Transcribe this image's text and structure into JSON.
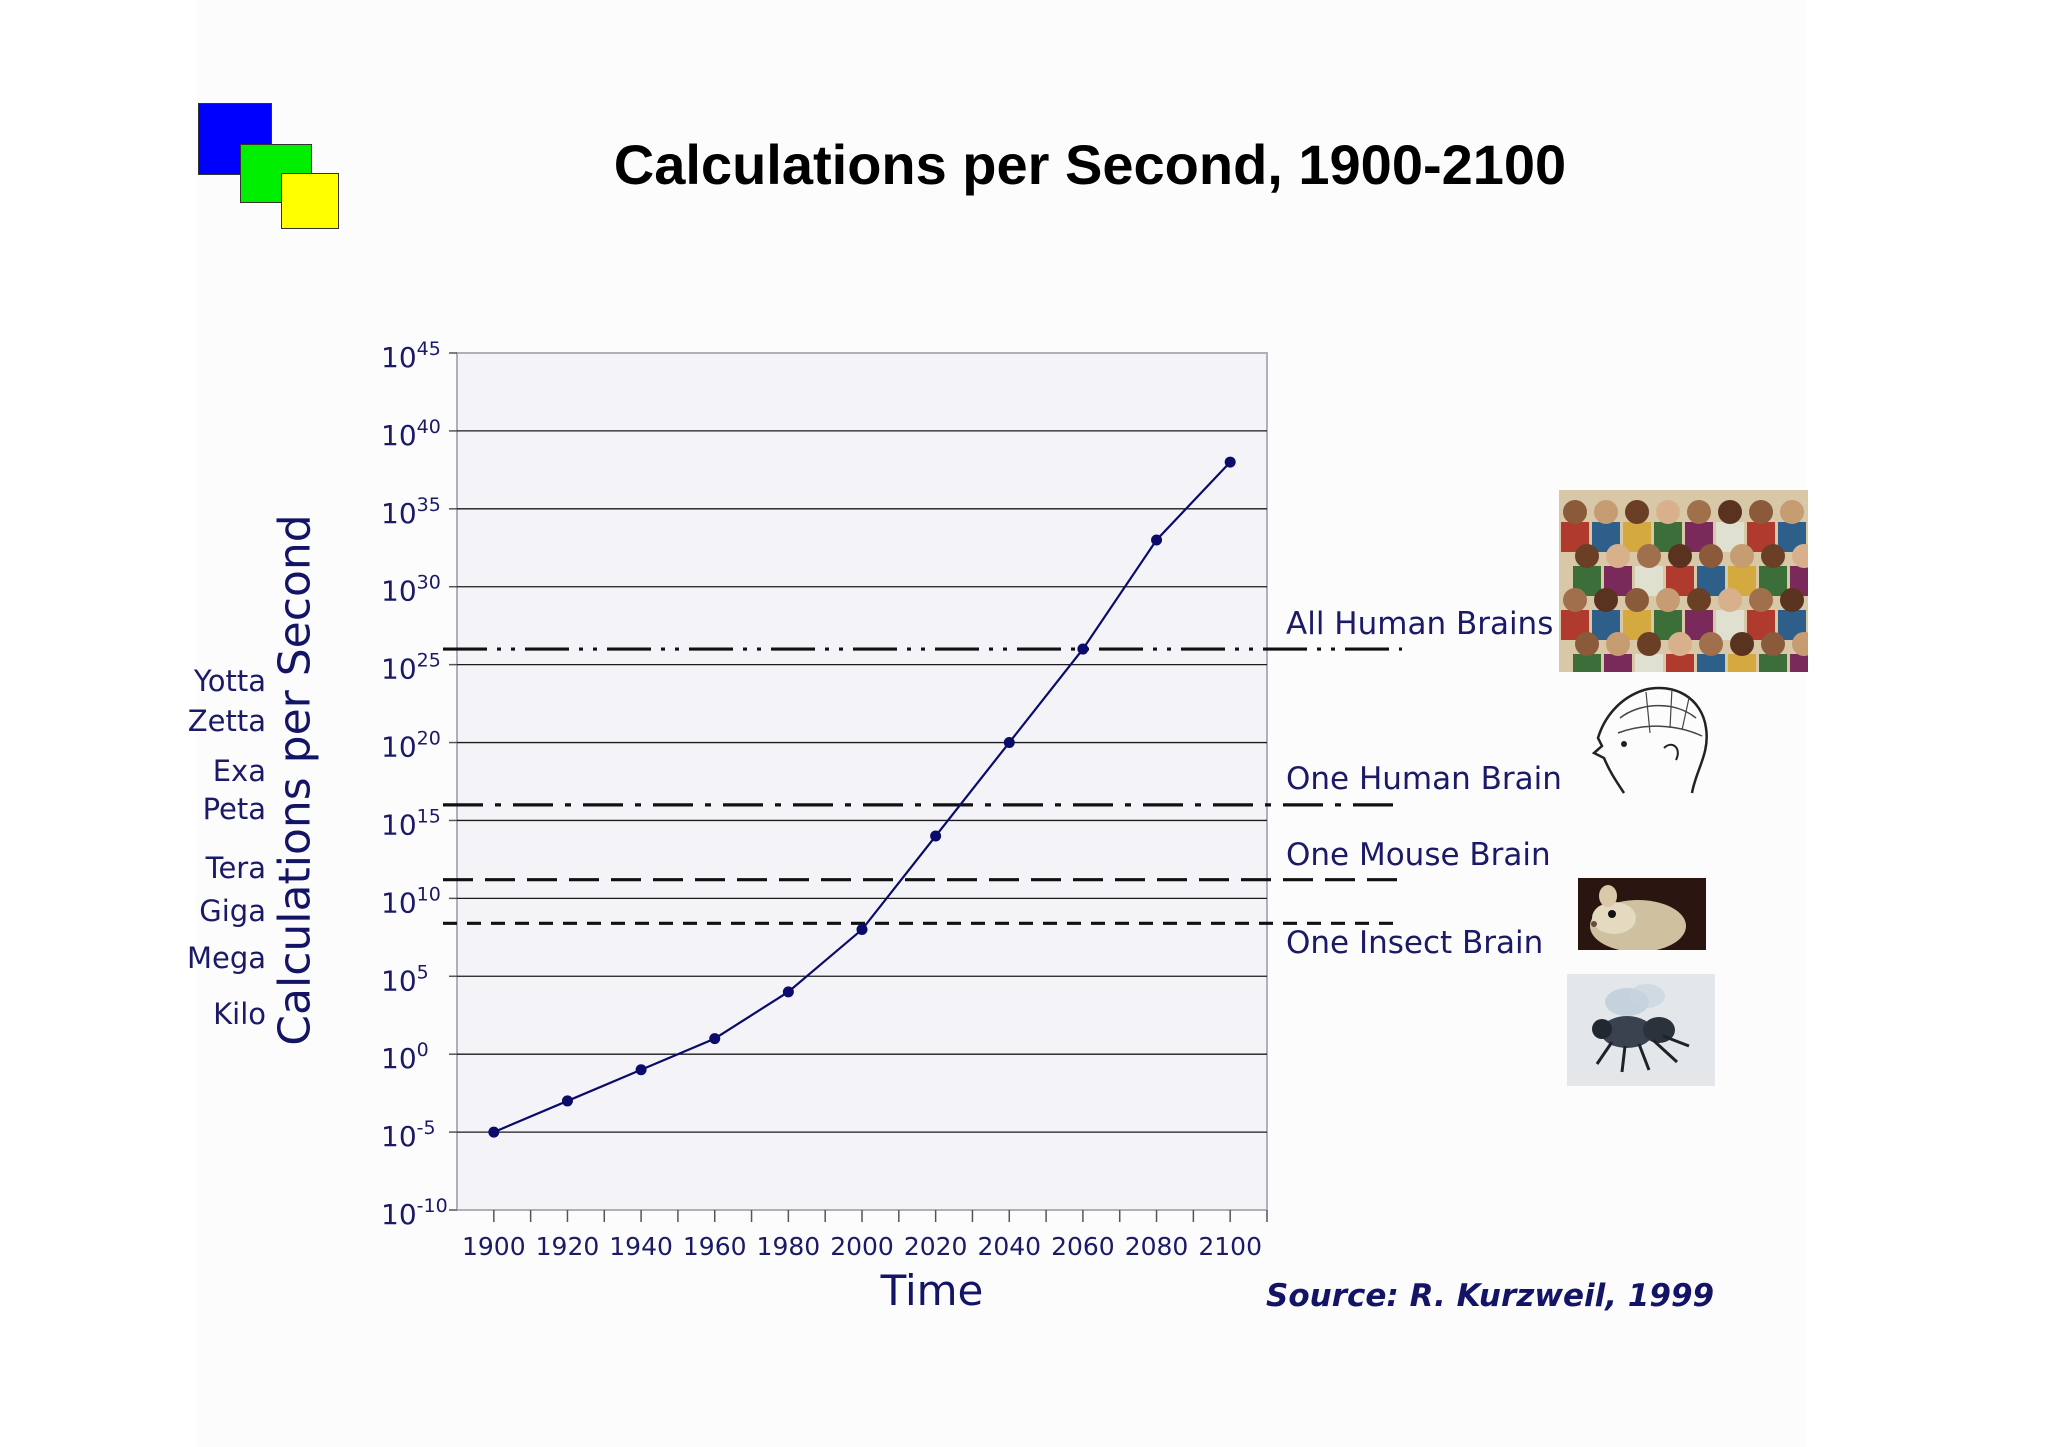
{
  "title": "Calculations per Second, 1900-2100",
  "logo": {
    "colors": [
      "#0000ff",
      "#00ee00",
      "#ffff00"
    ]
  },
  "prefixes": [
    "Yotta",
    "Zetta",
    "Exa",
    "Peta",
    "Tera",
    "Giga",
    "Mega",
    "Kilo"
  ],
  "source": "Source: R. Kurzweil, 1999",
  "images": {
    "humans_icon": "crowd-illustration",
    "brain_icon": "phrenology-head",
    "mouse_icon": "mouse-photo",
    "insect_icon": "fly-photo"
  },
  "chart_data": {
    "type": "line",
    "xlabel": "Time",
    "ylabel": "Calculations per Second",
    "y_scale": "log10",
    "x_ticks": [
      1900,
      1920,
      1940,
      1960,
      1980,
      2000,
      2020,
      2040,
      2060,
      2080,
      2100
    ],
    "y_ticks": [
      {
        "base": "10",
        "exp": "45",
        "value": 45
      },
      {
        "base": "10",
        "exp": "40",
        "value": 40
      },
      {
        "base": "10",
        "exp": "35",
        "value": 35
      },
      {
        "base": "10",
        "exp": "30",
        "value": 30
      },
      {
        "base": "10",
        "exp": "25",
        "value": 25
      },
      {
        "base": "10",
        "exp": "20",
        "value": 20
      },
      {
        "base": "10",
        "exp": "15",
        "value": 15
      },
      {
        "base": "10",
        "exp": "10",
        "value": 10
      },
      {
        "base": "10",
        "exp": "5",
        "value": 5
      },
      {
        "base": "10",
        "exp": "0",
        "value": 0
      },
      {
        "base": "10",
        "exp": "-5",
        "value": -5
      },
      {
        "base": "10",
        "exp": "-10",
        "value": -10
      }
    ],
    "xlim": [
      1890,
      2110
    ],
    "ylim": [
      -10,
      45
    ],
    "grid": true,
    "series": [
      {
        "x": [
          1900,
          1920,
          1940,
          1960,
          1980,
          2000,
          2020,
          2040,
          2060,
          2080,
          2100
        ],
        "y": [
          -5,
          -3,
          -1,
          1,
          4,
          8,
          14,
          20,
          26,
          33,
          38
        ],
        "color": "#0b0b6b"
      }
    ],
    "reference_lines": [
      {
        "label": "All Human Brains",
        "y": 26,
        "style": "dash-dot-dot"
      },
      {
        "label": "One Human Brain",
        "y": 16,
        "style": "dash-dot"
      },
      {
        "label": "One Mouse Brain",
        "y": 11.2,
        "style": "long-dash"
      },
      {
        "label": "One Insect Brain",
        "y": 8.4,
        "style": "short-dash"
      }
    ]
  }
}
